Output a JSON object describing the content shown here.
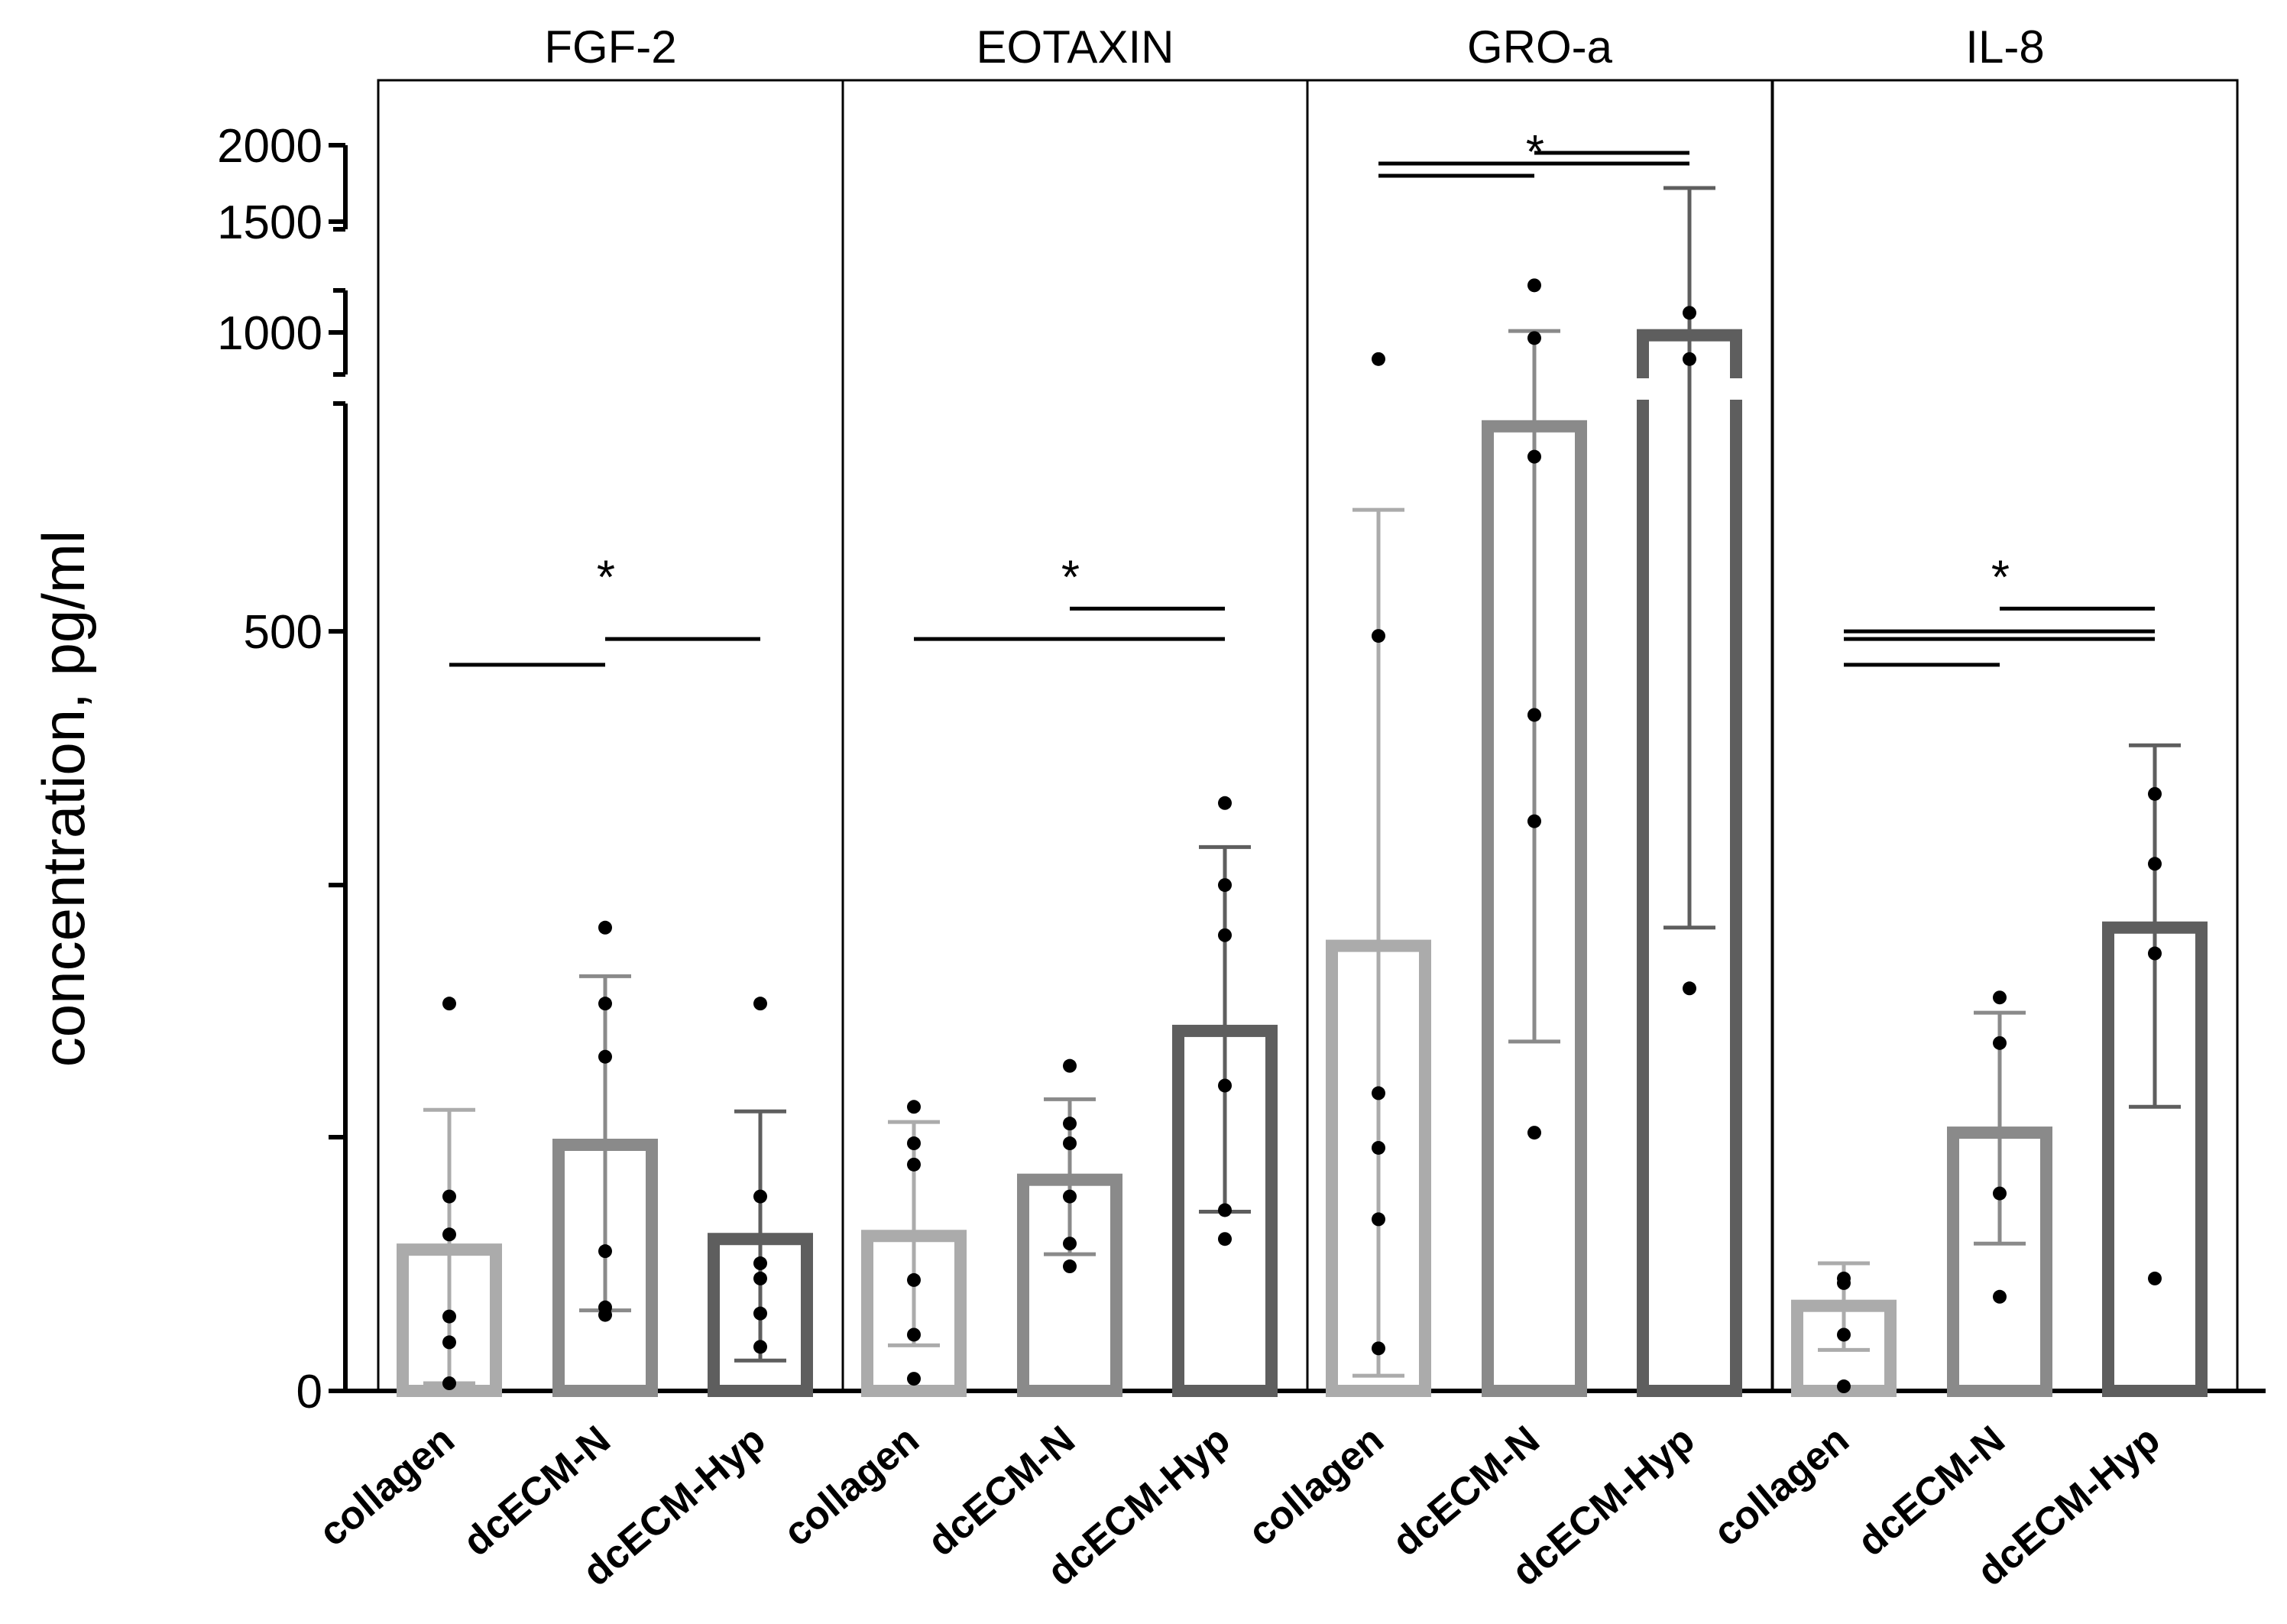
{
  "chart_data": {
    "type": "bar",
    "ylabel": "concentration, pg/ml",
    "y_axis": {
      "segments": [
        {
          "range": [
            0,
            650
          ],
          "ticks": [
            0,
            167,
            333,
            500
          ],
          "labels": [
            "0",
            "",
            "",
            "500"
          ]
        },
        {
          "range": [
            850,
            1150
          ],
          "ticks": [
            1000
          ],
          "labels": [
            "1000"
          ]
        },
        {
          "range": [
            1450,
            2000
          ],
          "ticks": [
            1500,
            2000
          ],
          "labels": [
            "1500",
            "2000"
          ]
        }
      ]
    },
    "categories": [
      "collagen",
      "dcECM-N",
      "dcECM-Hyp"
    ],
    "series_colors": [
      "#ababab",
      "#8a8a8a",
      "#5e5e5e"
    ],
    "panels": [
      {
        "title": "FGF-2",
        "bars": [
          {
            "mean": 93,
            "err": [
              5,
              185
            ],
            "points": [
              255,
              128,
              103,
              49,
              32,
              5
            ]
          },
          {
            "mean": 162,
            "err": [
              53,
              273
            ],
            "points": [
              305,
              255,
              220,
              92,
              55,
              50
            ]
          },
          {
            "mean": 100,
            "err": [
              20,
              184
            ],
            "points": [
              255,
              128,
              84,
              74,
              51,
              29
            ]
          }
        ],
        "sig": [
          {
            "from": 0,
            "to": 1,
            "level": 478
          },
          {
            "from": 1,
            "to": 2,
            "level": 495
          }
        ],
        "star_level": 540,
        "star": "*"
      },
      {
        "title": "EOTAXIN",
        "bars": [
          {
            "mean": 102,
            "err": [
              30,
              177
            ],
            "points": [
              187,
              163,
              149,
              73,
              37,
              8
            ]
          },
          {
            "mean": 139,
            "err": [
              90,
              192
            ],
            "points": [
              214,
              176,
              163,
              128,
              97,
              82
            ]
          },
          {
            "mean": 237,
            "err": [
              118,
              358
            ],
            "points": [
              387,
              333,
              300,
              201,
              119,
              100
            ]
          }
        ],
        "sig": [
          {
            "from": 0,
            "to": 2,
            "level": 495
          },
          {
            "from": 1,
            "to": 2,
            "level": 515
          }
        ],
        "star_level": 540,
        "star": "*"
      },
      {
        "title": "GRO-a",
        "bars": [
          {
            "mean": 293,
            "err": [
              10,
              580
            ],
            "points": [
              905,
              497,
              196,
              160,
              113,
              28
            ]
          },
          {
            "mean": 635,
            "err": [
              230,
              1005
            ],
            "points": [
              1175,
              980,
              615,
              445,
              375,
              170
            ]
          },
          {
            "mean": 990,
            "err": [
              305,
              1720
            ],
            "points": [
              1070,
              905,
              265
            ]
          }
        ],
        "sig": [
          {
            "from": 0,
            "to": 1,
            "level": 1800
          },
          {
            "from": 0,
            "to": 2,
            "level": 1880
          },
          {
            "from": 1,
            "to": 2,
            "level": 1950
          }
        ],
        "star_level": 2060,
        "star": "*"
      },
      {
        "title": "IL-8",
        "bars": [
          {
            "mean": 56,
            "err": [
              27,
              84
            ],
            "points": [
              74,
              71,
              37,
              3
            ]
          },
          {
            "mean": 170,
            "err": [
              97,
              249
            ],
            "points": [
              259,
              229,
              130,
              62
            ]
          },
          {
            "mean": 305,
            "err": [
              187,
              425
            ],
            "points": [
              393,
              347,
              288,
              74
            ]
          }
        ],
        "sig": [
          {
            "from": 0,
            "to": 1,
            "level": 478
          },
          {
            "from": 0,
            "to": 2,
            "level": 495
          },
          {
            "from": 0,
            "to": 2,
            "level": 500
          },
          {
            "from": 1,
            "to": 2,
            "level": 515
          }
        ],
        "star_level": 540,
        "star": "*"
      }
    ]
  }
}
